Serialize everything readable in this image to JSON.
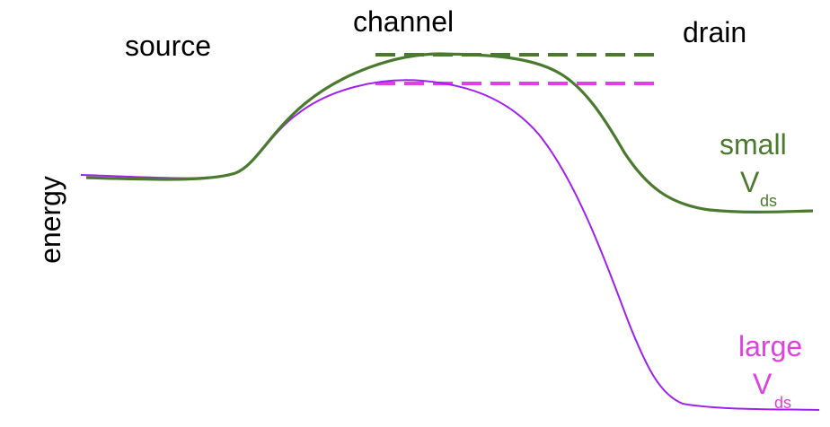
{
  "labels": {
    "source": "source",
    "channel": "channel",
    "drain": "drain",
    "energy": "energy",
    "small_word": "small",
    "large_word": "large",
    "v": "V",
    "ds": "ds"
  },
  "colors": {
    "small": "#4a7a2e",
    "large": "#a020f0",
    "large_label": "#e040e0",
    "text": "#000000"
  }
}
